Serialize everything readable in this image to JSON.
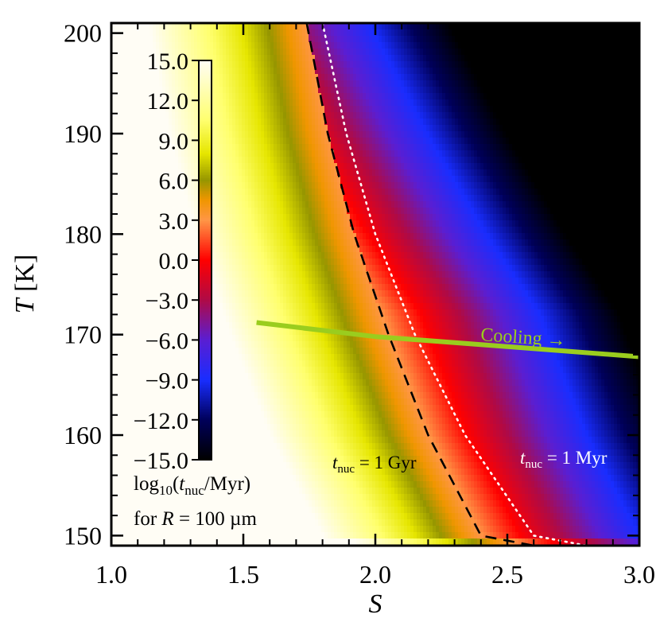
{
  "chart_data": {
    "type": "heatmap",
    "xlabel": "S",
    "ylabel": "T [K]",
    "xlim": [
      1.0,
      3.0
    ],
    "ylim": [
      149,
      201
    ],
    "x_ticks": [
      "1.0",
      "1.5",
      "2.0",
      "2.5",
      "3.0"
    ],
    "y_ticks": [
      "150",
      "160",
      "170",
      "180",
      "190",
      "200"
    ],
    "colorbar": {
      "range": [
        -15.0,
        15.0
      ],
      "ticks": [
        "15.0",
        "12.0",
        "9.0",
        "6.0",
        "3.0",
        "0.0",
        "−3.0",
        "−6.0",
        "−9.0",
        "−12.0",
        "−15.0"
      ],
      "label_prefix": "log",
      "label_sub": "10",
      "label_open": "(",
      "label_t": "t",
      "label_t_sub": "nuc",
      "label_rest": "/Myr)",
      "note_prefix": "for ",
      "note_var": "R",
      "note_rest": " = 100 µm"
    },
    "contours": [
      {
        "name": "1 Gyr",
        "level": 3.0,
        "style": "dashed",
        "color": "#000000",
        "points": [
          [
            1.74,
            201
          ],
          [
            1.82,
            190
          ],
          [
            1.92,
            180
          ],
          [
            2.05,
            170
          ],
          [
            2.2,
            160
          ],
          [
            2.4,
            150
          ],
          [
            2.6,
            149
          ]
        ]
      },
      {
        "name": "1 Myr",
        "level": 0.0,
        "style": "dotted",
        "color": "#ffffff",
        "points": [
          [
            1.8,
            201
          ],
          [
            1.89,
            190
          ],
          [
            2.0,
            180
          ],
          [
            2.15,
            170
          ],
          [
            2.34,
            160
          ],
          [
            2.6,
            150
          ],
          [
            2.8,
            149
          ]
        ]
      }
    ],
    "cooling_track": {
      "color": "#9acd1e",
      "points": [
        [
          1.55,
          171.2
        ],
        [
          2.0,
          169.8
        ],
        [
          2.5,
          168.8
        ],
        [
          3.0,
          167.8
        ]
      ]
    },
    "annotations": {
      "cooling": "Cooling →",
      "gyr_t": "t",
      "gyr_sub": "nuc",
      "gyr_rest": " = 1 Gyr",
      "myr_t": "t",
      "myr_sub": "nuc",
      "myr_rest": " = 1 Myr"
    }
  }
}
